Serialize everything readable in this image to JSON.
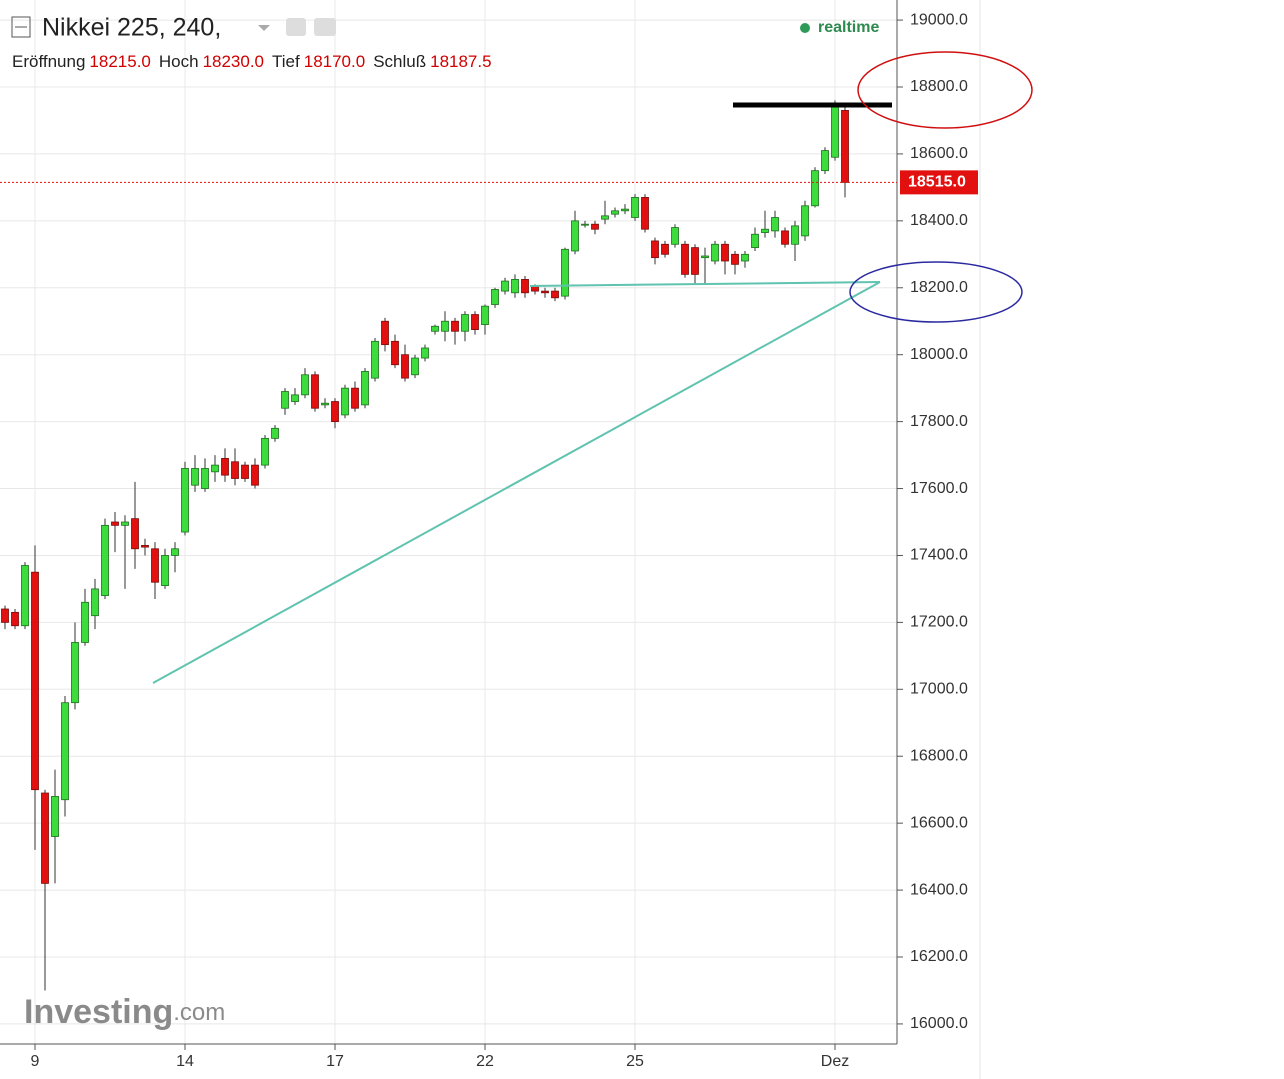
{
  "chart_data": {
    "type": "candlestick",
    "title": "Nikkei 225, 240,",
    "status": "realtime",
    "watermark": {
      "brand": "Investing",
      "suffix": ".com"
    },
    "ohlc_legend": [
      {
        "name": "Eröffnung",
        "value": "18215.0"
      },
      {
        "name": "Hoch",
        "value": "18230.0"
      },
      {
        "name": "Tief",
        "value": "18170.0"
      },
      {
        "name": "Schluß",
        "value": "18187.5"
      }
    ],
    "categories": [
      null,
      null,
      null,
      "9",
      null,
      null,
      null,
      null,
      null,
      null,
      null,
      null,
      null,
      null,
      null,
      null,
      null,
      null,
      "14",
      null,
      null,
      null,
      null,
      null,
      null,
      null,
      null,
      null,
      null,
      null,
      null,
      null,
      null,
      "17",
      null,
      null,
      null,
      null,
      null,
      null,
      null,
      null,
      null,
      null,
      null,
      null,
      null,
      null,
      "22",
      null,
      null,
      null,
      null,
      null,
      null,
      null,
      null,
      null,
      null,
      null,
      null,
      null,
      null,
      "25",
      null,
      null,
      null,
      null,
      null,
      null,
      null,
      null,
      null,
      null,
      null,
      null,
      null,
      null,
      null,
      null,
      null,
      null,
      null,
      "Dez",
      null
    ],
    "open": [
      17240,
      17230,
      17190,
      17350,
      16690,
      16560,
      16670,
      16960,
      17140,
      17220,
      17280,
      17500,
      17490,
      17510,
      17430,
      17420,
      17310,
      17400,
      17470,
      17610,
      17600,
      17650,
      17690,
      17680,
      17670,
      17670,
      17670,
      17750,
      17840,
      17860,
      17880,
      17940,
      17850,
      17860,
      17820,
      17900,
      17850,
      17930,
      18100,
      18040,
      18000,
      17940,
      17990,
      18070,
      18070,
      18100,
      18070,
      18120,
      18090,
      18150,
      18190,
      18185,
      18225,
      18205,
      18190,
      18190,
      18175,
      18310,
      18390,
      18390,
      18405,
      18420,
      18430,
      18410,
      18470,
      18340,
      18330,
      18330,
      18330,
      18320,
      18290,
      18280,
      18330,
      18300,
      18280,
      18320,
      18365,
      18370,
      18370,
      18330,
      18355,
      18445,
      18550,
      18590,
      18730
    ],
    "high": [
      17250,
      17240,
      17380,
      17430,
      16700,
      16760,
      16980,
      17200,
      17300,
      17330,
      17510,
      17530,
      17520,
      17620,
      17450,
      17440,
      17420,
      17440,
      17680,
      17700,
      17690,
      17700,
      17720,
      17720,
      17680,
      17690,
      17760,
      17790,
      17900,
      17900,
      17960,
      17950,
      17870,
      17870,
      17910,
      17920,
      17960,
      18050,
      18110,
      18060,
      18030,
      18000,
      18030,
      18090,
      18130,
      18110,
      18130,
      18130,
      18150,
      18200,
      18230,
      18240,
      18235,
      18210,
      18200,
      18200,
      18320,
      18430,
      18400,
      18400,
      18460,
      18440,
      18450,
      18480,
      18480,
      18350,
      18340,
      18390,
      18340,
      18330,
      18320,
      18340,
      18340,
      18310,
      18310,
      18380,
      18430,
      18430,
      18380,
      18400,
      18460,
      18560,
      18620,
      18760,
      18740
    ],
    "low": [
      17180,
      17180,
      17180,
      16520,
      16100,
      16420,
      16620,
      16940,
      17130,
      17180,
      17270,
      17410,
      17300,
      17360,
      17400,
      17270,
      17300,
      17350,
      17460,
      17590,
      17590,
      17620,
      17620,
      17610,
      17620,
      17600,
      17660,
      17740,
      17820,
      17850,
      17870,
      17830,
      17840,
      17780,
      17810,
      17830,
      17840,
      17920,
      18010,
      17960,
      17920,
      17930,
      17980,
      18060,
      18040,
      18030,
      18040,
      18060,
      18060,
      18140,
      18180,
      18170,
      18170,
      18180,
      18170,
      18160,
      18165,
      18300,
      18380,
      18360,
      18390,
      18410,
      18420,
      18400,
      18365,
      18270,
      18290,
      18320,
      18230,
      18210,
      18210,
      18270,
      18240,
      18240,
      18260,
      18310,
      18350,
      18350,
      18320,
      18280,
      18340,
      18440,
      18540,
      18580,
      18470
    ],
    "close": [
      17200,
      17190,
      17370,
      16700,
      16420,
      16680,
      16960,
      17140,
      17260,
      17300,
      17490,
      17490,
      17500,
      17420,
      17425,
      17320,
      17400,
      17420,
      17660,
      17660,
      17660,
      17670,
      17640,
      17630,
      17630,
      17610,
      17750,
      17780,
      17890,
      17880,
      17940,
      17840,
      17855,
      17800,
      17900,
      17840,
      17950,
      18040,
      18030,
      17970,
      17930,
      17990,
      18020,
      18085,
      18100,
      18070,
      18120,
      18075,
      18145,
      18195,
      18220,
      18225,
      18185,
      18190,
      18185,
      18170,
      18315,
      18400,
      18390,
      18375,
      18415,
      18430,
      18435,
      18470,
      18375,
      18290,
      18300,
      18380,
      18240,
      18240,
      18295,
      18330,
      18280,
      18270,
      18300,
      18360,
      18375,
      18410,
      18330,
      18385,
      18445,
      18550,
      18610,
      18750,
      18515
    ],
    "up_color": "#3ddc3d",
    "down_color": "#e31010",
    "last_price": {
      "value": 18515,
      "label": "18515.0"
    },
    "ylim": [
      15940,
      19060
    ],
    "yticks": [
      {
        "value": 16000,
        "label": "16000.0"
      },
      {
        "value": 16200,
        "label": "16200.0"
      },
      {
        "value": 16400,
        "label": "16400.0"
      },
      {
        "value": 16600,
        "label": "16600.0"
      },
      {
        "value": 16800,
        "label": "16800.0"
      },
      {
        "value": 17000,
        "label": "17000.0"
      },
      {
        "value": 17200,
        "label": "17200.0"
      },
      {
        "value": 17400,
        "label": "17400.0"
      },
      {
        "value": 17600,
        "label": "17600.0"
      },
      {
        "value": 17800,
        "label": "17800.0"
      },
      {
        "value": 18000,
        "label": "18000.0"
      },
      {
        "value": 18200,
        "label": "18200.0"
      },
      {
        "value": 18400,
        "label": "18400.0"
      },
      {
        "value": 18600,
        "label": "18600.0"
      },
      {
        "value": 18800,
        "label": "18800.0"
      },
      {
        "value": 19000,
        "label": "19000.0"
      }
    ],
    "grid": true
  }
}
